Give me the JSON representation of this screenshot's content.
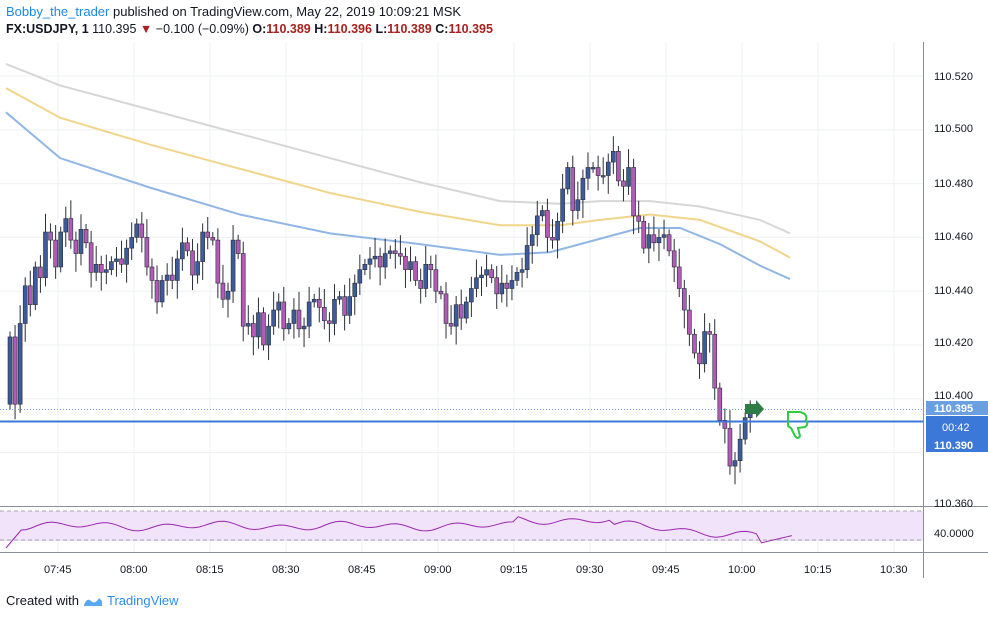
{
  "header": {
    "author": "Bobby_the_trader",
    "published_text": "published on TradingView.com, May 22, 2019 10:09:21 MSK",
    "symbol": "FX:USDJPY, 1",
    "last": "110.395",
    "change": "−0.100 (−0.09%)",
    "o_label": "O:",
    "o": "110.389",
    "h_label": "H:",
    "h": "110.396",
    "l_label": "L:",
    "l": "110.389",
    "c_label": "C:",
    "c": "110.395"
  },
  "price_axis": {
    "ticks": [
      "110.520",
      "110.500",
      "110.480",
      "110.460",
      "110.440",
      "110.420",
      "110.400",
      "110.360"
    ],
    "badge_last": "110.395",
    "badge_timer": "00:42",
    "badge_line": "110.390"
  },
  "time_axis": {
    "ticks": [
      "07:45",
      "08:00",
      "08:15",
      "08:30",
      "08:45",
      "09:00",
      "09:15",
      "09:30",
      "09:45",
      "10:00",
      "10:15",
      "10:30"
    ]
  },
  "oscillator": {
    "tick": "40.0000"
  },
  "colors": {
    "up_candle": "#3d5a99",
    "down_candle": "#b05bb5",
    "ma_gray": "#d6d6d6",
    "ma_yellow": "#f1d58a",
    "ma_blue": "#90b6e6",
    "hline": "#3c78d8",
    "arrow_green": "#2e7d46",
    "thumb_green": "#2ecc40",
    "rsi_line": "#9c27b0",
    "rsi_band": "#f0e3fa"
  },
  "footer": {
    "created_with": "Created with",
    "brand": "TradingView"
  }
}
